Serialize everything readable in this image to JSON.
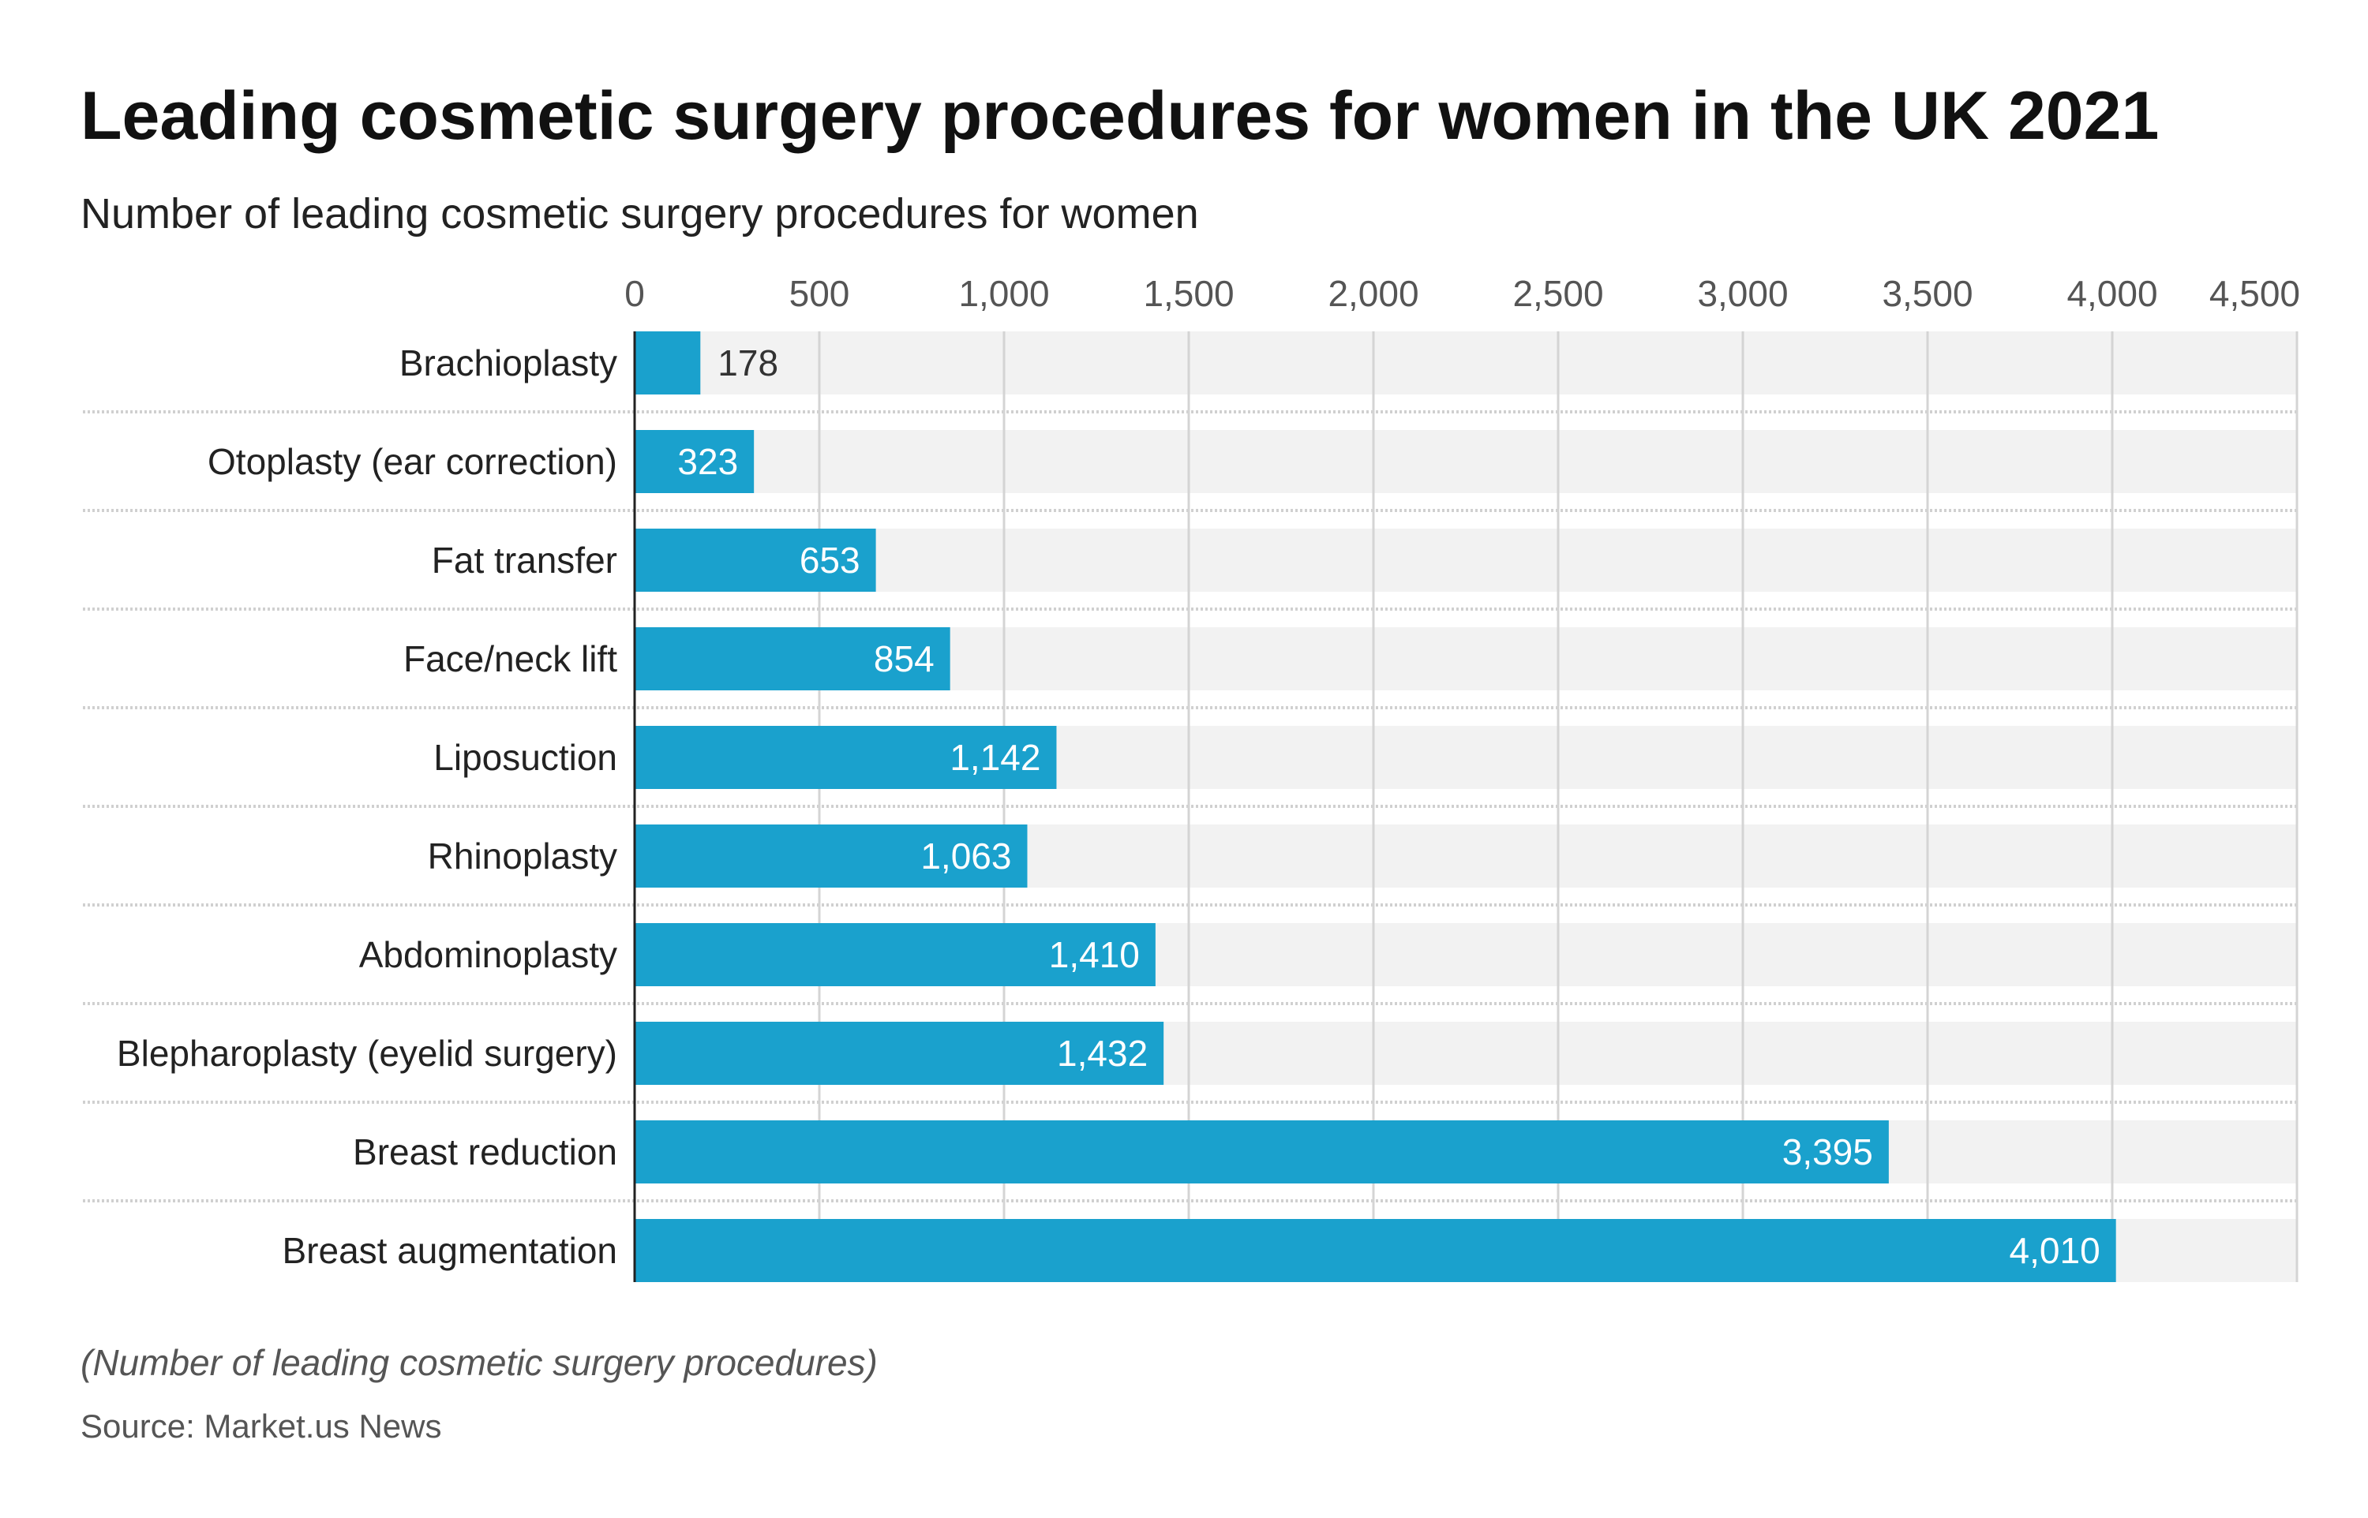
{
  "title": "Leading cosmetic surgery procedures for women in the UK 2021",
  "subtitle": "Number of leading cosmetic surgery procedures for women",
  "note": "(Number of leading cosmetic surgery procedures)",
  "source": "Source: Market.us News",
  "colors": {
    "bar": "#1aa1cd",
    "track": "#f2f2f2",
    "grid": "#d4d4d4"
  },
  "chart_data": {
    "type": "bar",
    "orientation": "horizontal",
    "categories": [
      "Brachioplasty",
      "Otoplasty (ear correction)",
      "Fat transfer",
      "Face/neck lift",
      "Liposuction",
      "Rhinoplasty",
      "Abdominoplasty",
      "Blepharoplasty (eyelid surgery)",
      "Breast reduction",
      "Breast augmentation"
    ],
    "values": [
      178,
      323,
      653,
      854,
      1142,
      1063,
      1410,
      1432,
      3395,
      4010
    ],
    "value_labels": [
      "178",
      "323",
      "653",
      "854",
      "1,142",
      "1,063",
      "1,410",
      "1,432",
      "3,395",
      "4,010"
    ],
    "xlim": [
      0,
      4500
    ],
    "ticks": [
      0,
      500,
      1000,
      1500,
      2000,
      2500,
      3000,
      3500,
      4000,
      4500
    ],
    "tick_labels": [
      "0",
      "500",
      "1,000",
      "1,500",
      "2,000",
      "2,500",
      "3,000",
      "3,500",
      "4,000",
      "4,500"
    ],
    "axis_position": "top",
    "grid": true
  }
}
